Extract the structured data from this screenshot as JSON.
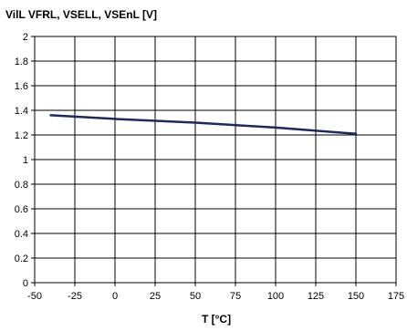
{
  "chart_data": {
    "type": "line",
    "title": "VilL VFRL, VSELL, VSEnL [V]",
    "xlabel": "T [°C]",
    "ylabel": "",
    "xlim": [
      -50,
      175
    ],
    "ylim": [
      0,
      2
    ],
    "x_ticks": [
      -50,
      -25,
      0,
      25,
      50,
      75,
      100,
      125,
      150,
      175
    ],
    "y_ticks": [
      0,
      0.2,
      0.4,
      0.6,
      0.8,
      1,
      1.2,
      1.4,
      1.6,
      1.8,
      2
    ],
    "grid": true,
    "series": [
      {
        "color": "#1f2a5a",
        "x": [
          -40,
          0,
          50,
          100,
          150
        ],
        "y": [
          1.36,
          1.33,
          1.3,
          1.26,
          1.21
        ]
      }
    ]
  }
}
